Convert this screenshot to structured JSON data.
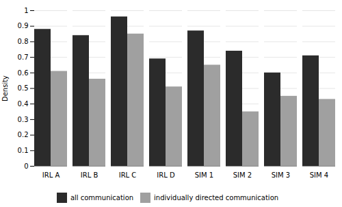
{
  "chart_data": {
    "type": "bar",
    "categories": [
      "IRL A",
      "IRL B",
      "IRL C",
      "IRL D",
      "SIM 1",
      "SIM 2",
      "SIM 3",
      "SIM 4"
    ],
    "series": [
      {
        "name": "all communication",
        "color": "#2b2b2b",
        "values": [
          0.88,
          0.84,
          0.96,
          0.69,
          0.87,
          0.74,
          0.6,
          0.71
        ]
      },
      {
        "name": "individually directed communication",
        "color": "#a0a0a0",
        "values": [
          0.61,
          0.56,
          0.85,
          0.51,
          0.65,
          0.35,
          0.45,
          0.43
        ]
      }
    ],
    "ylabel": "Density",
    "ylim": [
      0,
      1.0
    ],
    "yticks": [
      0,
      0.1,
      0.2,
      0.3,
      0.4,
      0.5,
      0.6,
      0.7,
      0.8,
      0.9,
      1
    ],
    "grid": true,
    "legend": "bottom"
  }
}
